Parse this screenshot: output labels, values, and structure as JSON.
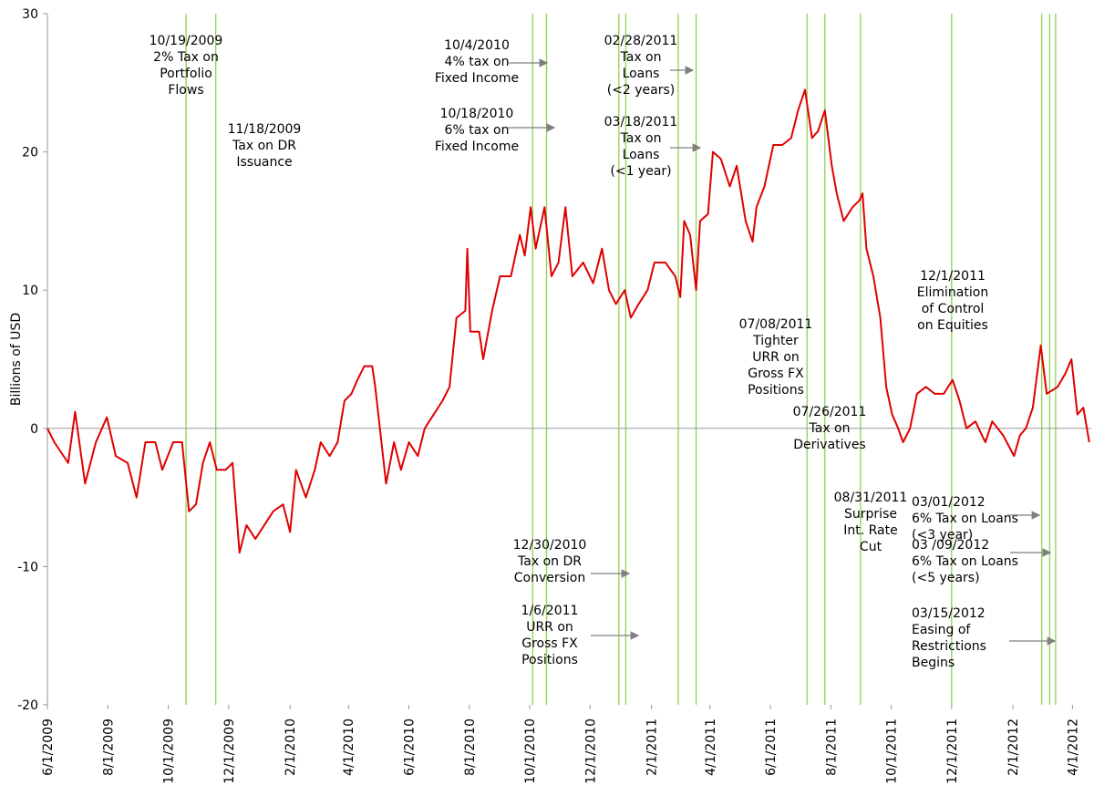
{
  "chart_data": {
    "type": "line",
    "y_label": "Billions of USD",
    "color": "#e00000",
    "event_color": "#92d050",
    "xlim": [
      "2009-06-01",
      "2012-04-20"
    ],
    "xticks": [
      {
        "value": "2009-06-01",
        "label": "6/1/2009"
      },
      {
        "value": "2009-08-01",
        "label": "8/1/2009"
      },
      {
        "value": "2009-10-01",
        "label": "10/1/2009"
      },
      {
        "value": "2009-12-01",
        "label": "12/1/2009"
      },
      {
        "value": "2010-02-01",
        "label": "2/1/2010"
      },
      {
        "value": "2010-04-01",
        "label": "4/1/2010"
      },
      {
        "value": "2010-06-01",
        "label": "6/1/2010"
      },
      {
        "value": "2010-08-01",
        "label": "8/1/2010"
      },
      {
        "value": "2010-10-01",
        "label": "10/1/2010"
      },
      {
        "value": "2010-12-01",
        "label": "12/1/2010"
      },
      {
        "value": "2011-02-01",
        "label": "2/1/2011"
      },
      {
        "value": "2011-04-01",
        "label": "4/1/2011"
      },
      {
        "value": "2011-06-01",
        "label": "6/1/2011"
      },
      {
        "value": "2011-08-01",
        "label": "8/1/2011"
      },
      {
        "value": "2011-10-01",
        "label": "10/1/2011"
      },
      {
        "value": "2011-12-01",
        "label": "12/1/2011"
      },
      {
        "value": "2012-02-01",
        "label": "2/1/2012"
      },
      {
        "value": "2012-04-01",
        "label": "4/1/2012"
      }
    ],
    "ylim": [
      -20,
      30
    ],
    "yticks": [
      -20,
      -10,
      0,
      10,
      20,
      30
    ],
    "x": [
      "2009-06-01",
      "2009-06-08",
      "2009-06-22",
      "2009-06-29",
      "2009-07-09",
      "2009-07-20",
      "2009-07-31",
      "2009-08-09",
      "2009-08-21",
      "2009-08-30",
      "2009-09-08",
      "2009-09-18",
      "2009-09-25",
      "2009-10-06",
      "2009-10-15",
      "2009-10-22",
      "2009-10-29",
      "2009-11-05",
      "2009-11-12",
      "2009-11-19",
      "2009-11-28",
      "2009-12-05",
      "2009-12-12",
      "2009-12-19",
      "2009-12-28",
      "2010-01-06",
      "2010-01-15",
      "2010-01-25",
      "2010-02-01",
      "2010-02-07",
      "2010-02-17",
      "2010-02-26",
      "2010-03-04",
      "2010-03-13",
      "2010-03-21",
      "2010-03-28",
      "2010-04-04",
      "2010-04-10",
      "2010-04-17",
      "2010-04-25",
      "2010-04-28",
      "2010-05-09",
      "2010-05-17",
      "2010-05-24",
      "2010-06-01",
      "2010-06-10",
      "2010-06-17",
      "2010-06-26",
      "2010-07-05",
      "2010-07-12",
      "2010-07-19",
      "2010-07-28",
      "2010-07-30",
      "2010-08-02",
      "2010-08-11",
      "2010-08-15",
      "2010-08-24",
      "2010-09-01",
      "2010-09-12",
      "2010-09-21",
      "2010-09-26",
      "2010-10-02",
      "2010-10-07",
      "2010-10-16",
      "2010-10-23",
      "2010-10-30",
      "2010-11-06",
      "2010-11-13",
      "2010-11-24",
      "2010-12-04",
      "2010-12-13",
      "2010-12-20",
      "2010-12-27",
      "2011-01-05",
      "2011-01-11",
      "2011-01-19",
      "2011-01-28",
      "2011-02-04",
      "2011-02-15",
      "2011-02-25",
      "2011-03-02",
      "2011-03-06",
      "2011-03-12",
      "2011-03-18",
      "2011-03-22",
      "2011-03-30",
      "2011-04-04",
      "2011-04-12",
      "2011-04-21",
      "2011-04-28",
      "2011-05-07",
      "2011-05-14",
      "2011-05-18",
      "2011-05-26",
      "2011-06-04",
      "2011-06-13",
      "2011-06-22",
      "2011-06-29",
      "2011-07-06",
      "2011-07-13",
      "2011-07-19",
      "2011-07-26",
      "2011-08-02",
      "2011-08-07",
      "2011-08-14",
      "2011-08-23",
      "2011-08-30",
      "2011-09-02",
      "2011-09-06",
      "2011-09-13",
      "2011-09-20",
      "2011-09-26",
      "2011-10-02",
      "2011-10-08",
      "2011-10-13",
      "2011-10-20",
      "2011-10-27",
      "2011-11-05",
      "2011-11-14",
      "2011-11-23",
      "2011-12-02",
      "2011-12-09",
      "2011-12-16",
      "2011-12-25",
      "2012-01-04",
      "2012-01-11",
      "2012-01-22",
      "2012-02-02",
      "2012-02-08",
      "2012-02-14",
      "2012-02-21",
      "2012-02-29",
      "2012-03-06",
      "2012-03-17",
      "2012-03-25",
      "2012-03-31",
      "2012-04-06",
      "2012-04-12",
      "2012-04-18"
    ],
    "values": [
      0,
      -1,
      -2.5,
      1.2,
      -4,
      -1,
      0.8,
      -2,
      -2.5,
      -5,
      -1,
      -1,
      -3,
      -1,
      -1,
      -6,
      -5.5,
      -2.5,
      -1,
      -3,
      -3,
      -2.5,
      -9,
      -7,
      -8,
      -7,
      -6,
      -5.5,
      -7.5,
      -3,
      -5,
      -3,
      -1,
      -2,
      -1,
      2,
      2.5,
      3.5,
      4.5,
      4.5,
      3,
      -4,
      -1,
      -3,
      -1,
      -2,
      0,
      1,
      2,
      3,
      8,
      8.5,
      13,
      7,
      7,
      5,
      8.5,
      11,
      11,
      14,
      12.5,
      16,
      13,
      16,
      11,
      12,
      16,
      11,
      12,
      10.5,
      13,
      10,
      9,
      10,
      8,
      9,
      10,
      12,
      12,
      11,
      9.5,
      15,
      14,
      10,
      15,
      15.5,
      20,
      19.5,
      17.5,
      19,
      15,
      13.5,
      16,
      17.5,
      20.5,
      20.5,
      21,
      23,
      24.5,
      21,
      21.5,
      23,
      19,
      17,
      15,
      16,
      16.5,
      17,
      13,
      11,
      8,
      3,
      1,
      0,
      -1,
      0,
      2.5,
      3,
      2.5,
      2.5,
      3.5,
      2,
      0,
      0.5,
      -1,
      0.5,
      -0.5,
      -2,
      -0.5,
      0,
      1.5,
      6,
      2.5,
      3,
      4,
      5,
      1,
      1.5,
      -1
    ],
    "events": [
      {
        "date": "2009-10-19",
        "label": [
          "10/19/2009",
          "2% Tax on",
          "Portfolio",
          "Flows"
        ]
      },
      {
        "date": "2009-11-18",
        "label": [
          "11/18/2009",
          "Tax on DR",
          "Issuance"
        ]
      },
      {
        "date": "2010-10-04",
        "label": [
          "10/4/2010",
          "4% tax on",
          "Fixed Income"
        ]
      },
      {
        "date": "2010-10-18",
        "label": [
          "10/18/2010",
          "6% tax on",
          "Fixed Income"
        ]
      },
      {
        "date": "2010-12-30",
        "label": [
          "12/30/2010",
          "Tax on DR",
          "Conversion"
        ]
      },
      {
        "date": "2011-01-06",
        "label": [
          "1/6/2011",
          "URR on",
          "Gross FX",
          "Positions"
        ]
      },
      {
        "date": "2011-02-28",
        "label": [
          "02/28/2011",
          "Tax on",
          "Loans",
          "(<2 years)"
        ]
      },
      {
        "date": "2011-03-18",
        "label": [
          "03/18/2011",
          "Tax on",
          "Loans",
          "(<1 year)"
        ]
      },
      {
        "date": "2011-07-08",
        "label": [
          "07/08/2011",
          "Tighter",
          "URR on",
          "Gross FX",
          "Positions"
        ]
      },
      {
        "date": "2011-07-26",
        "label": [
          "07/26/2011",
          "Tax on",
          "Derivatives"
        ]
      },
      {
        "date": "2011-08-31",
        "label": [
          "08/31/2011",
          "Surprise",
          "Int. Rate",
          "Cut"
        ]
      },
      {
        "date": "2011-12-01",
        "label": [
          "12/1/2011",
          "Elimination",
          "of Control",
          "on Equities"
        ]
      },
      {
        "date": "2012-03-01",
        "label": [
          "03/01/2012",
          "6% Tax on Loans",
          "(<3 year)"
        ]
      },
      {
        "date": "2012-03-09",
        "label": [
          "03 /09/2012",
          "6% Tax on Loans",
          "(<5 years)"
        ]
      },
      {
        "date": "2012-03-15",
        "label": [
          "03/15/2012",
          "Easing of",
          "Restrictions",
          "Begins"
        ]
      }
    ]
  }
}
